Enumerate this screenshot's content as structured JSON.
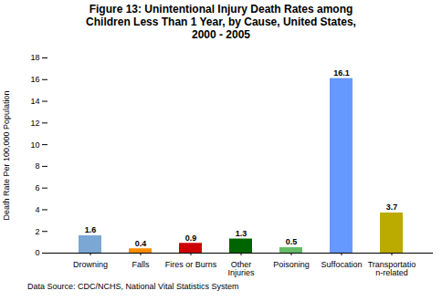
{
  "chart_data": {
    "type": "bar",
    "title": "Figure 13: Unintentional Injury Death Rates among\nChildren Less Than 1 Year, by Cause, United States,\n2000 - 2005",
    "categories": [
      "Drowning",
      "Falls",
      "Fires or Burns",
      "Other\nInjuries",
      "Poisoning",
      "Suffocation",
      "Transportatio\nn-related"
    ],
    "values": [
      1.6,
      0.4,
      0.9,
      1.3,
      0.5,
      16.1,
      3.7
    ],
    "colors": [
      "#7BA7D4",
      "#FF8C00",
      "#CC0000",
      "#006400",
      "#66BB66",
      "#6699FF",
      "#BBAA00"
    ],
    "ylabel": "Death Rate Per 100,000 Population",
    "ylim": [
      0,
      18
    ],
    "yticks": [
      0,
      2,
      4,
      6,
      8,
      10,
      12,
      14,
      16,
      18
    ],
    "caption": "Data Source: CDC/NCHS, National Vital Statistics System",
    "data_labels": true,
    "grid": false
  }
}
